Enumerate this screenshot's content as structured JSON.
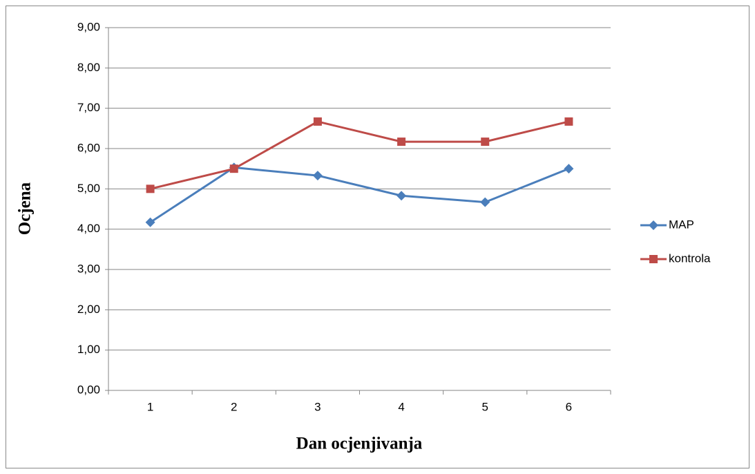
{
  "chart_data": {
    "type": "line",
    "x_label": "Dan ocjenjivanja",
    "y_label": "Ocjena",
    "categories": [
      "1",
      "2",
      "3",
      "4",
      "5",
      "6"
    ],
    "series": [
      {
        "name": "MAP",
        "color": "#4a7ebb",
        "marker": "diamond",
        "values": [
          4.17,
          5.53,
          5.33,
          4.83,
          4.67,
          5.5
        ]
      },
      {
        "name": "kontrola",
        "color": "#be4b48",
        "marker": "square",
        "values": [
          5.0,
          5.5,
          6.67,
          6.17,
          6.17,
          6.67
        ]
      }
    ],
    "ylim": [
      0,
      9
    ],
    "yticks": [
      {
        "value": 0,
        "label": "0,00"
      },
      {
        "value": 1,
        "label": "1,00"
      },
      {
        "value": 2,
        "label": "2,00"
      },
      {
        "value": 3,
        "label": "3,00"
      },
      {
        "value": 4,
        "label": "4,00"
      },
      {
        "value": 5,
        "label": "5,00"
      },
      {
        "value": 6,
        "label": "6,00"
      },
      {
        "value": 7,
        "label": "7,00"
      },
      {
        "value": 8,
        "label": "8,00"
      },
      {
        "value": 9,
        "label": "9,00"
      }
    ],
    "grid": true,
    "legend": "right"
  }
}
